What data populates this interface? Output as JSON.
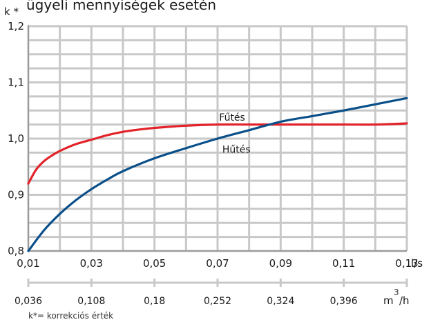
{
  "header_fragment": "ügyeli mennyiségek esetén",
  "chart_data": {
    "type": "line",
    "ylabel": "k *",
    "ylim": [
      0.8,
      1.2
    ],
    "yticks": [
      0.8,
      0.9,
      1.0,
      1.1,
      1.2
    ],
    "ytick_labels": [
      "0,8",
      "0,9",
      "1,0",
      "1,1",
      "1,2"
    ],
    "xlim": [
      0.01,
      0.13
    ],
    "xticks": [
      0.01,
      0.03,
      0.05,
      0.07,
      0.09,
      0.11,
      0.13
    ],
    "xtick_labels": [
      "0,01",
      "0,03",
      "0,05",
      "0,07",
      "0,09",
      "0,11",
      "0,13"
    ],
    "x_unit": "l/s",
    "x2tick_labels": [
      "0,036",
      "0,108",
      "0,18",
      "0,252",
      "0,324",
      "0,396"
    ],
    "x2_unit_base": "m",
    "x2_unit_sup": "3",
    "x2_unit_tail": "/h",
    "grid": true,
    "series": [
      {
        "name": "Fűtés",
        "color": "#e2232a",
        "x": [
          0.01,
          0.0125,
          0.015,
          0.0175,
          0.02,
          0.025,
          0.03,
          0.035,
          0.04,
          0.045,
          0.05,
          0.06,
          0.07,
          0.08,
          0.09,
          0.1,
          0.11,
          0.12,
          0.13
        ],
        "values": [
          0.92,
          0.945,
          0.96,
          0.97,
          0.978,
          0.99,
          0.998,
          1.006,
          1.012,
          1.016,
          1.019,
          1.023,
          1.025,
          1.025,
          1.025,
          1.025,
          1.025,
          1.025,
          1.027
        ]
      },
      {
        "name": "Hűtés",
        "color": "#0a4f8a",
        "x": [
          0.01,
          0.015,
          0.02,
          0.025,
          0.03,
          0.035,
          0.04,
          0.05,
          0.06,
          0.07,
          0.08,
          0.09,
          0.1,
          0.11,
          0.12,
          0.13
        ],
        "values": [
          0.8,
          0.837,
          0.866,
          0.89,
          0.91,
          0.927,
          0.942,
          0.965,
          0.983,
          1.0,
          1.015,
          1.03,
          1.04,
          1.05,
          1.061,
          1.072
        ]
      }
    ],
    "annotation": "k*= korrekciós érték"
  }
}
